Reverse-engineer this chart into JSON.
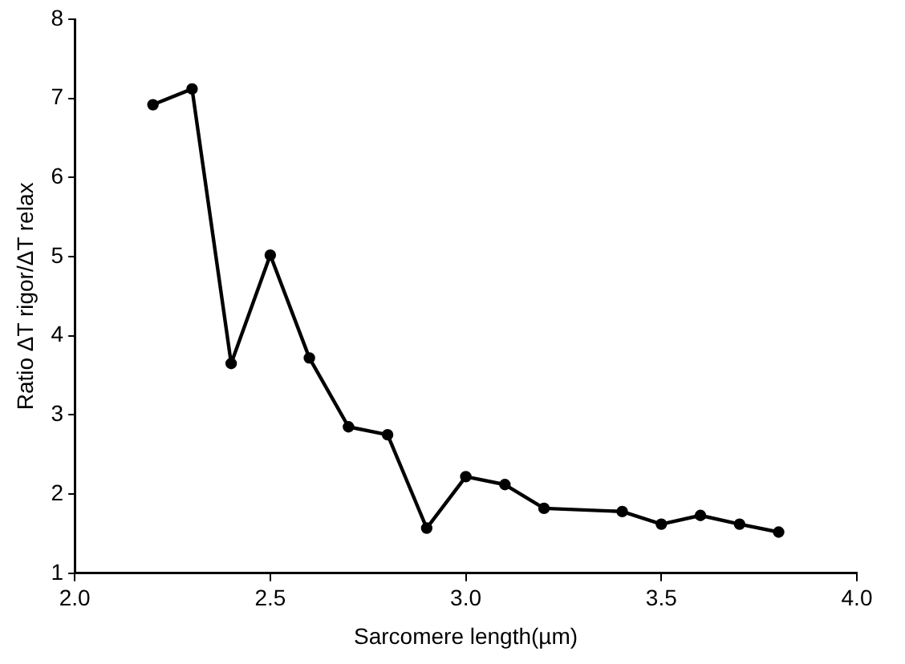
{
  "chart_data": {
    "type": "line",
    "xlabel": "Sarcomere length(µm)",
    "ylabel": "Ratio ΔT rigor/ΔT relax",
    "x": [
      2.2,
      2.3,
      2.4,
      2.5,
      2.6,
      2.7,
      2.8,
      2.9,
      3.0,
      3.1,
      3.2,
      3.4,
      3.5,
      3.6,
      3.7,
      3.8
    ],
    "series": [
      {
        "color": "#000000",
        "values": [
          6.92,
          7.12,
          3.65,
          5.02,
          3.72,
          2.85,
          2.75,
          1.57,
          2.22,
          2.12,
          1.82,
          1.78,
          1.62,
          1.73,
          1.62,
          1.52
        ]
      }
    ],
    "xlim": [
      2.0,
      4.0
    ],
    "xticks": [
      {
        "value": 2.0,
        "label": "2.0"
      },
      2.5,
      {
        "value": 3.0,
        "label": "3.0"
      },
      3.5,
      {
        "value": 4.0,
        "label": "4.0"
      }
    ],
    "ylim": [
      1,
      8
    ],
    "yticks": [
      1,
      2,
      3,
      4,
      5,
      6,
      7,
      8
    ],
    "grid": false,
    "legend": false,
    "marker": "circle",
    "line_style": "solid"
  }
}
